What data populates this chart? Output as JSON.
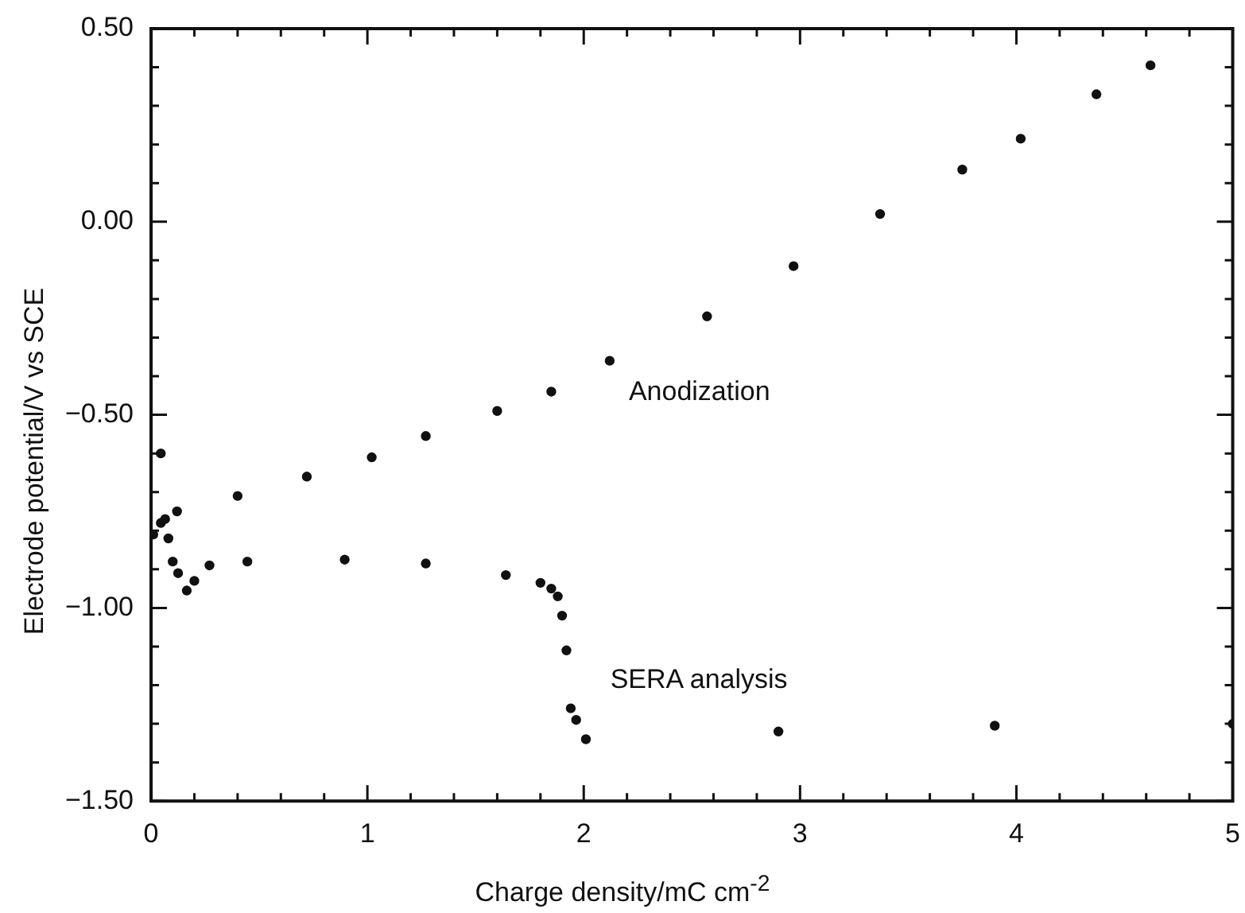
{
  "chart_data": {
    "type": "scatter",
    "xlabel": "Charge density/mC cm$^{-2}$",
    "ylabel": "Electrode potential/V vs SCE",
    "xlim": [
      0,
      5
    ],
    "ylim": [
      -1.5,
      0.5
    ],
    "xticks": [
      0,
      {
        "value": 0.2,
        "label": null
      },
      {
        "value": 0.4,
        "label": null
      },
      {
        "value": 0.6,
        "label": null
      },
      {
        "value": 0.8,
        "label": null
      },
      1,
      {
        "value": 1.2,
        "label": null
      },
      {
        "value": 1.4,
        "label": null
      },
      {
        "value": 1.6,
        "label": null
      },
      {
        "value": 1.8,
        "label": null
      },
      2,
      {
        "value": 2.2,
        "label": null
      },
      {
        "value": 2.4,
        "label": null
      },
      {
        "value": 2.6,
        "label": null
      },
      {
        "value": 2.8,
        "label": null
      },
      3,
      {
        "value": 3.2,
        "label": null
      },
      {
        "value": 3.4,
        "label": null
      },
      {
        "value": 3.6,
        "label": null
      },
      {
        "value": 3.8,
        "label": null
      },
      4,
      {
        "value": 4.2,
        "label": null
      },
      {
        "value": 4.4,
        "label": null
      },
      {
        "value": 4.6,
        "label": null
      },
      {
        "value": 4.8,
        "label": null
      },
      5
    ],
    "yticks": [
      {
        "value": -1.5,
        "label": "−1.50"
      },
      {
        "value": -1.4,
        "label": null
      },
      {
        "value": -1.3,
        "label": null
      },
      {
        "value": -1.2,
        "label": null
      },
      {
        "value": -1.1,
        "label": null
      },
      {
        "value": -1.0,
        "label": "−1.00"
      },
      {
        "value": -0.9,
        "label": null
      },
      {
        "value": -0.8,
        "label": null
      },
      {
        "value": -0.7,
        "label": null
      },
      {
        "value": -0.6,
        "label": null
      },
      {
        "value": -0.5,
        "label": "−0.50"
      },
      {
        "value": -0.4,
        "label": null
      },
      {
        "value": -0.3,
        "label": null
      },
      {
        "value": -0.2,
        "label": null
      },
      {
        "value": -0.1,
        "label": null
      },
      {
        "value": 0,
        "label": "0.00"
      },
      {
        "value": 0.1,
        "label": null
      },
      {
        "value": 0.2,
        "label": null
      },
      {
        "value": 0.3,
        "label": null
      },
      {
        "value": 0.4,
        "label": null
      },
      {
        "value": 0.5,
        "label": "0.50"
      }
    ],
    "marker": "circle",
    "grid": false,
    "legend": false,
    "series": [
      {
        "name": "Anodization",
        "color": "#111111",
        "x": [
          0.01,
          0.045,
          0.12,
          0.4,
          0.72,
          1.02,
          1.27,
          1.6,
          1.85,
          2.12,
          2.57,
          2.97,
          3.37,
          3.75,
          4.02,
          4.37,
          4.62
        ],
        "values": [
          -0.81,
          -0.78,
          -0.75,
          -0.71,
          -0.66,
          -0.61,
          -0.555,
          -0.49,
          -0.44,
          -0.36,
          -0.245,
          -0.115,
          0.02,
          0.135,
          0.215,
          0.33,
          0.405
        ]
      },
      {
        "name": "SERA analysis",
        "color": "#111111",
        "x": [
          0.045,
          0.065,
          0.08,
          0.1,
          0.125,
          0.165,
          0.2,
          0.27,
          0.445,
          0.895,
          1.27,
          1.64,
          1.8,
          1.85,
          1.88,
          1.9,
          1.92,
          1.94,
          1.965,
          2.01,
          2.9,
          3.9,
          5.0
        ],
        "values": [
          -0.6,
          -0.77,
          -0.82,
          -0.88,
          -0.91,
          -0.955,
          -0.93,
          -0.89,
          -0.88,
          -0.875,
          -0.885,
          -0.915,
          -0.935,
          -0.95,
          -0.97,
          -1.02,
          -1.11,
          -1.26,
          -1.29,
          -1.34,
          -1.32,
          -1.305,
          -1.3
        ]
      }
    ]
  }
}
